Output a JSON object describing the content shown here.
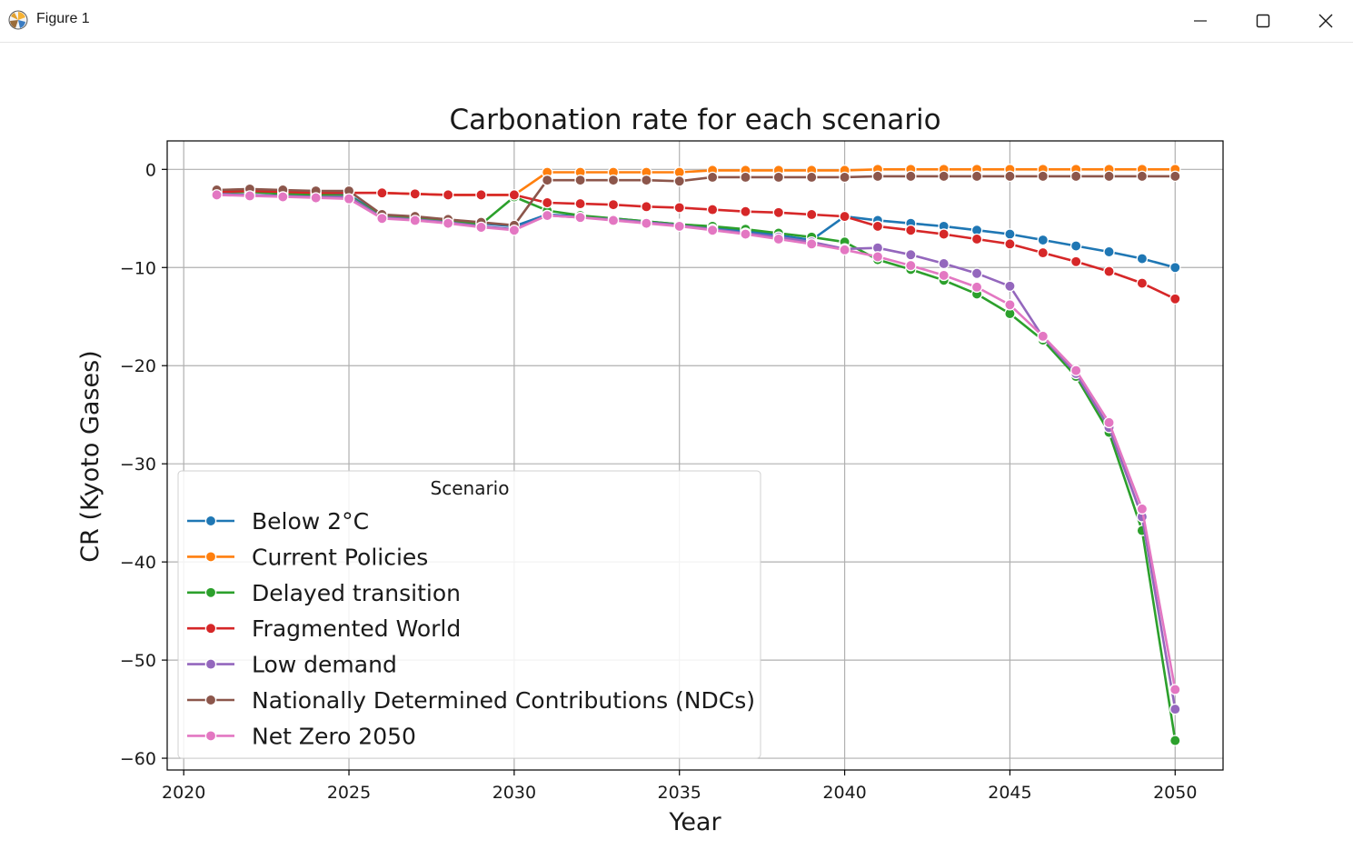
{
  "window": {
    "title": "Figure 1",
    "icons": [
      "matplotlib-logo-icon",
      "minimize-icon",
      "maximize-icon",
      "close-icon"
    ]
  },
  "chart_data": {
    "type": "line",
    "title": "Carbonation rate for each scenario",
    "xlabel": "Year",
    "ylabel": "CR (Kyoto Gases)",
    "xlim": [
      2019.5,
      2051.45
    ],
    "ylim": [
      -61.2,
      2.9
    ],
    "xticks": [
      2020,
      2025,
      2030,
      2035,
      2040,
      2045,
      2050
    ],
    "yticks": [
      0,
      -10,
      -20,
      -30,
      -40,
      -50,
      -60
    ],
    "ytick_labels": [
      "0",
      "−10",
      "−20",
      "−30",
      "−40",
      "−50",
      "−60"
    ],
    "grid": true,
    "markers": "circle",
    "legend": {
      "title": "Scenario",
      "placement": "lower-left"
    },
    "x": [
      2021,
      2022,
      2023,
      2024,
      2025,
      2026,
      2027,
      2028,
      2029,
      2030,
      2031,
      2032,
      2033,
      2034,
      2035,
      2036,
      2037,
      2038,
      2039,
      2040,
      2041,
      2042,
      2043,
      2044,
      2045,
      2046,
      2047,
      2048,
      2049,
      2050
    ],
    "series": [
      {
        "name": "Below 2°C",
        "color": "#1f77b4",
        "values": [
          -2.3,
          -2.2,
          -2.4,
          -2.5,
          -2.6,
          -4.7,
          -4.9,
          -5.2,
          -5.5,
          -5.8,
          -4.6,
          -4.8,
          -5.0,
          -5.3,
          -5.6,
          -5.9,
          -6.3,
          -6.7,
          -7.2,
          -4.8,
          -5.2,
          -5.5,
          -5.8,
          -6.2,
          -6.6,
          -7.2,
          -7.8,
          -8.4,
          -9.1,
          -10.0
        ]
      },
      {
        "name": "Current Policies",
        "color": "#ff7f0e",
        "values": [
          -2.2,
          -2.1,
          -2.3,
          -2.4,
          -2.4,
          -2.4,
          -2.5,
          -2.6,
          -2.6,
          -2.6,
          -0.3,
          -0.3,
          -0.3,
          -0.3,
          -0.3,
          -0.1,
          -0.1,
          -0.1,
          -0.1,
          -0.1,
          0.0,
          0.0,
          0.0,
          0.0,
          0.0,
          0.0,
          0.0,
          0.0,
          0.0,
          0.0
        ]
      },
      {
        "name": "Delayed transition",
        "color": "#2ca02c",
        "values": [
          -2.4,
          -2.3,
          -2.5,
          -2.6,
          -2.7,
          -4.8,
          -5.0,
          -5.3,
          -5.6,
          -2.8,
          -4.2,
          -4.7,
          -5.0,
          -5.3,
          -5.6,
          -5.8,
          -6.1,
          -6.5,
          -6.9,
          -7.4,
          -9.2,
          -10.2,
          -11.3,
          -12.7,
          -14.7,
          -17.4,
          -21.1,
          -26.8,
          -36.8,
          -58.2
        ]
      },
      {
        "name": "Fragmented World",
        "color": "#d62728",
        "values": [
          -2.3,
          -2.2,
          -2.3,
          -2.4,
          -2.4,
          -2.4,
          -2.5,
          -2.6,
          -2.6,
          -2.6,
          -3.4,
          -3.5,
          -3.6,
          -3.8,
          -3.9,
          -4.1,
          -4.3,
          -4.4,
          -4.6,
          -4.8,
          -5.8,
          -6.2,
          -6.6,
          -7.1,
          -7.6,
          -8.5,
          -9.4,
          -10.4,
          -11.6,
          -13.2
        ]
      },
      {
        "name": "Low demand",
        "color": "#9467bd",
        "values": [
          -2.5,
          -2.6,
          -2.7,
          -2.8,
          -2.8,
          -4.9,
          -5.1,
          -5.4,
          -5.8,
          -6.1,
          -4.7,
          -4.9,
          -5.1,
          -5.4,
          -5.7,
          -6.1,
          -6.5,
          -6.9,
          -7.4,
          -8.1,
          -8.0,
          -8.7,
          -9.6,
          -10.6,
          -11.9,
          -17.1,
          -20.8,
          -26.3,
          -35.4,
          -55.0
        ]
      },
      {
        "name": "Nationally Determined Contributions (NDCs)",
        "color": "#8c564b",
        "values": [
          -2.1,
          -2.0,
          -2.1,
          -2.2,
          -2.2,
          -4.6,
          -4.8,
          -5.1,
          -5.4,
          -5.7,
          -1.1,
          -1.1,
          -1.1,
          -1.1,
          -1.2,
          -0.8,
          -0.8,
          -0.8,
          -0.8,
          -0.8,
          -0.7,
          -0.7,
          -0.7,
          -0.7,
          -0.7,
          -0.7,
          -0.7,
          -0.7,
          -0.7,
          -0.7
        ]
      },
      {
        "name": "Net Zero 2050",
        "color": "#e377c2",
        "values": [
          -2.6,
          -2.7,
          -2.8,
          -2.9,
          -3.0,
          -5.0,
          -5.2,
          -5.5,
          -5.9,
          -6.2,
          -4.7,
          -4.9,
          -5.2,
          -5.5,
          -5.8,
          -6.2,
          -6.6,
          -7.1,
          -7.6,
          -8.2,
          -8.9,
          -9.8,
          -10.8,
          -12.0,
          -13.8,
          -17.0,
          -20.5,
          -25.8,
          -34.6,
          -53.0
        ]
      }
    ]
  }
}
